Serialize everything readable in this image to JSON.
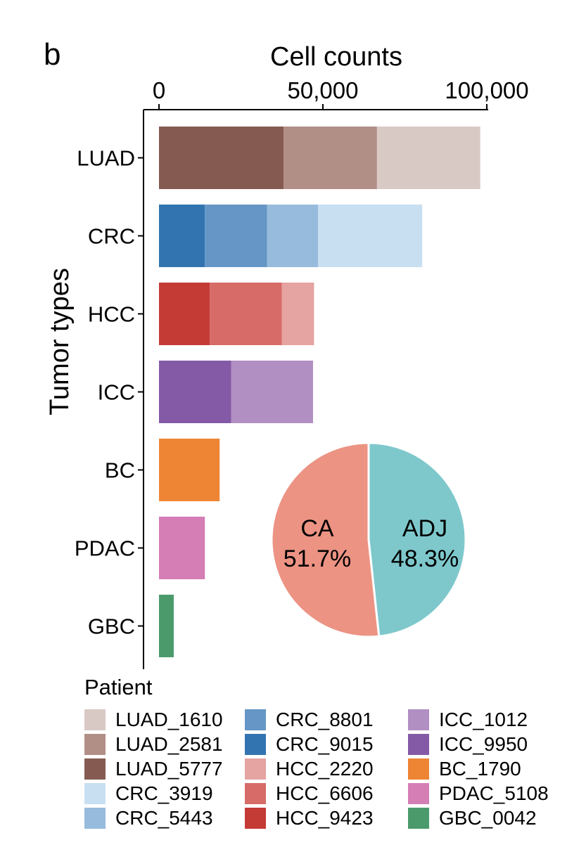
{
  "panel_label": "b",
  "chart_data": {
    "type": "bar",
    "orientation": "horizontal",
    "stacked": true,
    "xlabel": "Cell counts",
    "ylabel": "Tumor types",
    "xlim": [
      0,
      100000
    ],
    "xticks": [
      0,
      50000,
      100000
    ],
    "xtick_labels": [
      "0",
      "50,000",
      "100,000"
    ],
    "categories": [
      "LUAD",
      "CRC",
      "HCC",
      "ICC",
      "BC",
      "PDAC",
      "GBC"
    ],
    "stacks": [
      {
        "category": "LUAD",
        "segments": [
          {
            "name": "LUAD_5777",
            "value": 38000
          },
          {
            "name": "LUAD_2581",
            "value": 28500
          },
          {
            "name": "LUAD_1610",
            "value": 31500
          }
        ]
      },
      {
        "category": "CRC",
        "segments": [
          {
            "name": "CRC_9015",
            "value": 14000
          },
          {
            "name": "CRC_8801",
            "value": 19000
          },
          {
            "name": "CRC_5443",
            "value": 15500
          },
          {
            "name": "CRC_3919",
            "value": 31800
          }
        ]
      },
      {
        "category": "HCC",
        "segments": [
          {
            "name": "HCC_9423",
            "value": 15500
          },
          {
            "name": "HCC_6606",
            "value": 22000
          },
          {
            "name": "HCC_2220",
            "value": 9800
          }
        ]
      },
      {
        "category": "ICC",
        "segments": [
          {
            "name": "ICC_9950",
            "value": 22000
          },
          {
            "name": "ICC_1012",
            "value": 25000
          }
        ]
      },
      {
        "category": "BC",
        "segments": [
          {
            "name": "BC_1790",
            "value": 18500
          }
        ]
      },
      {
        "category": "PDAC",
        "segments": [
          {
            "name": "PDAC_5108",
            "value": 14000
          }
        ]
      },
      {
        "category": "GBC",
        "segments": [
          {
            "name": "GBC_0042",
            "value": 4500
          }
        ]
      }
    ],
    "pie": {
      "slices": [
        {
          "name": "ADJ",
          "label": "48.3%",
          "value": 48.3,
          "color": "#7ec8cc"
        },
        {
          "name": "CA",
          "label": "51.7%",
          "value": 51.7,
          "color": "#ec9384"
        }
      ]
    },
    "legend": {
      "title": "Patient",
      "items": [
        {
          "name": "LUAD_1610",
          "color": "#d9c9c4"
        },
        {
          "name": "LUAD_2581",
          "color": "#b18f87"
        },
        {
          "name": "LUAD_5777",
          "color": "#855b51"
        },
        {
          "name": "CRC_3919",
          "color": "#c7dff1"
        },
        {
          "name": "CRC_5443",
          "color": "#96bbdc"
        },
        {
          "name": "CRC_8801",
          "color": "#6596c6"
        },
        {
          "name": "CRC_9015",
          "color": "#3274b0"
        },
        {
          "name": "HCC_2220",
          "color": "#e5a3a2"
        },
        {
          "name": "HCC_6606",
          "color": "#d66b68"
        },
        {
          "name": "HCC_9423",
          "color": "#c43a35"
        },
        {
          "name": "ICC_1012",
          "color": "#b18fc3"
        },
        {
          "name": "ICC_9950",
          "color": "#845aa6"
        },
        {
          "name": "BC_1790",
          "color": "#ee8535"
        },
        {
          "name": "PDAC_5108",
          "color": "#d57db5"
        },
        {
          "name": "GBC_0042",
          "color": "#4b9a6c"
        }
      ]
    }
  }
}
